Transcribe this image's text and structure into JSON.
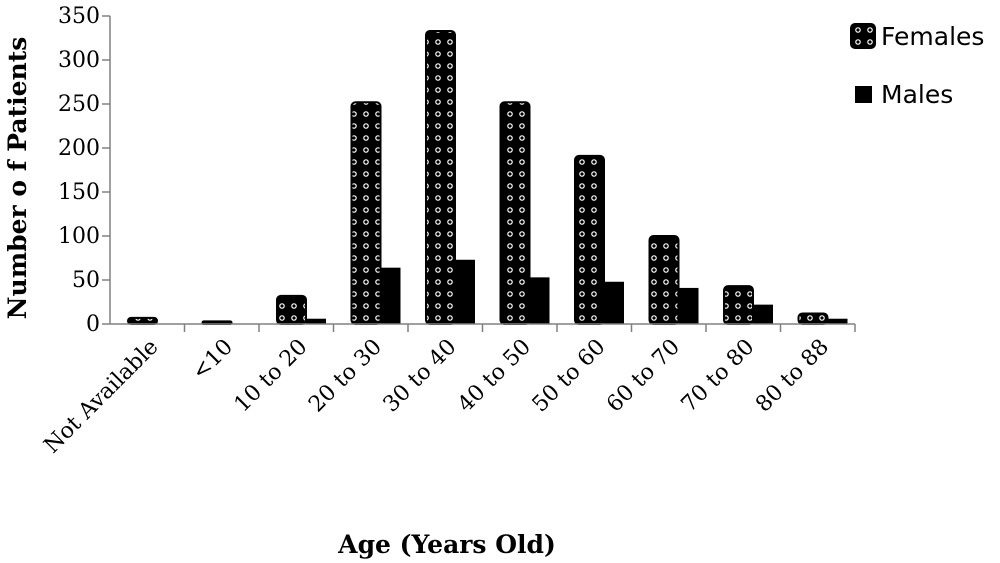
{
  "chart_data": {
    "type": "bar",
    "title": "",
    "xlabel": "Age (Years Old)",
    "ylabel": "Number o f Patients",
    "ylim": [
      0,
      350
    ],
    "yticks": [
      0,
      50,
      100,
      150,
      200,
      250,
      300,
      350
    ],
    "categories": [
      "Not Available",
      "<10",
      "10 to 20",
      "20 to 30",
      "30 to 40",
      "40 to 50",
      "50 to 60",
      "60 to 70",
      "70 to 80",
      "80 to 88"
    ],
    "series": [
      {
        "name": "Females",
        "values": [
          7,
          3,
          32,
          252,
          333,
          252,
          191,
          100,
          43,
          12
        ],
        "pattern": "dotted-black"
      },
      {
        "name": "Males",
        "values": [
          0,
          0,
          6,
          64,
          73,
          53,
          48,
          41,
          22,
          6
        ],
        "pattern": "solid-black"
      }
    ],
    "legend_position": "top-right",
    "grid": false,
    "colors": {
      "bar": "#000000",
      "axis": "#808080",
      "background": "#ffffff"
    }
  }
}
